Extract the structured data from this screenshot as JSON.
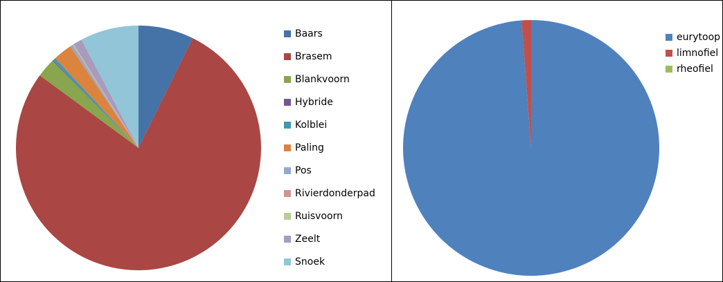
{
  "chart_data": [
    {
      "type": "pie",
      "categories": [
        "Baars",
        "Brasem",
        "Blankvoorn",
        "Hybride",
        "Kolblei",
        "Paling",
        "Pos",
        "Rivierdonderpad",
        "Ruisvoorn",
        "Zeelt",
        "Snoek"
      ],
      "values": [
        7.3,
        77.8,
        2.5,
        0.1,
        0.4,
        2.5,
        0.3,
        0.1,
        0.1,
        1.2,
        7.7
      ],
      "colors": [
        "#4572A7",
        "#AA4643",
        "#89A54E",
        "#71588F",
        "#4198AF",
        "#DB843D",
        "#93A9CF",
        "#D19392",
        "#B9CD96",
        "#A99BBD",
        "#92C5D8"
      ]
    },
    {
      "type": "pie",
      "categories": [
        "eurytoop",
        "limnofiel",
        "rheofiel"
      ],
      "values": [
        98.8,
        1.2,
        0
      ],
      "colors": [
        "#4F81BD",
        "#C0504D",
        "#9BBB59"
      ]
    }
  ]
}
